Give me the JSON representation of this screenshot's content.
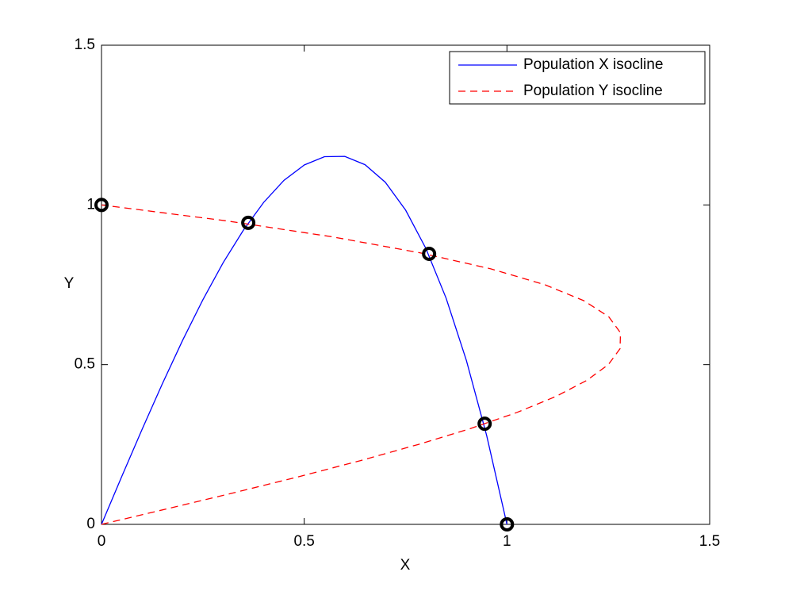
{
  "chart_data": {
    "type": "line",
    "xlabel": "X",
    "ylabel": "Y",
    "xlim": [
      0,
      1.5
    ],
    "ylim": [
      0,
      1.5
    ],
    "xticks": [
      0,
      0.5,
      1,
      1.5
    ],
    "yticks": [
      0,
      0.5,
      1,
      1.5
    ],
    "legend": "upper right",
    "series": [
      {
        "name": "Population X isocline",
        "color": "#0000ff",
        "style": "solid",
        "x": [
          0,
          0.05,
          0.1,
          0.15,
          0.2,
          0.25,
          0.3,
          0.35,
          0.4,
          0.45,
          0.5,
          0.55,
          0.6,
          0.65,
          0.7,
          0.75,
          0.8,
          0.85,
          0.9,
          0.95,
          1.0
        ],
        "values": [
          0,
          0.15,
          0.297,
          0.44,
          0.576,
          0.703,
          0.819,
          0.921,
          1.008,
          1.077,
          1.125,
          1.151,
          1.152,
          1.126,
          1.071,
          0.984,
          0.864,
          0.708,
          0.513,
          0.278,
          0
        ]
      },
      {
        "name": "Population Y isocline",
        "color": "#ff0000",
        "style": "dashed",
        "x": [
          0,
          0.166,
          0.33,
          0.489,
          0.64,
          0.781,
          0.91,
          1.024,
          1.12,
          1.196,
          1.25,
          1.279,
          1.28,
          1.251,
          1.19,
          1.094,
          0.96,
          0.786,
          0.57,
          0.309,
          0
        ],
        "values": [
          0,
          0.05,
          0.1,
          0.15,
          0.2,
          0.25,
          0.3,
          0.35,
          0.4,
          0.45,
          0.5,
          0.55,
          0.6,
          0.65,
          0.7,
          0.75,
          0.8,
          0.85,
          0.9,
          0.95,
          1.0
        ]
      }
    ],
    "points": {
      "color": "#000000",
      "x": [
        0,
        0.362,
        0.808,
        0.945,
        1.0
      ],
      "values": [
        1.0,
        0.944,
        0.847,
        0.315,
        0
      ]
    }
  }
}
